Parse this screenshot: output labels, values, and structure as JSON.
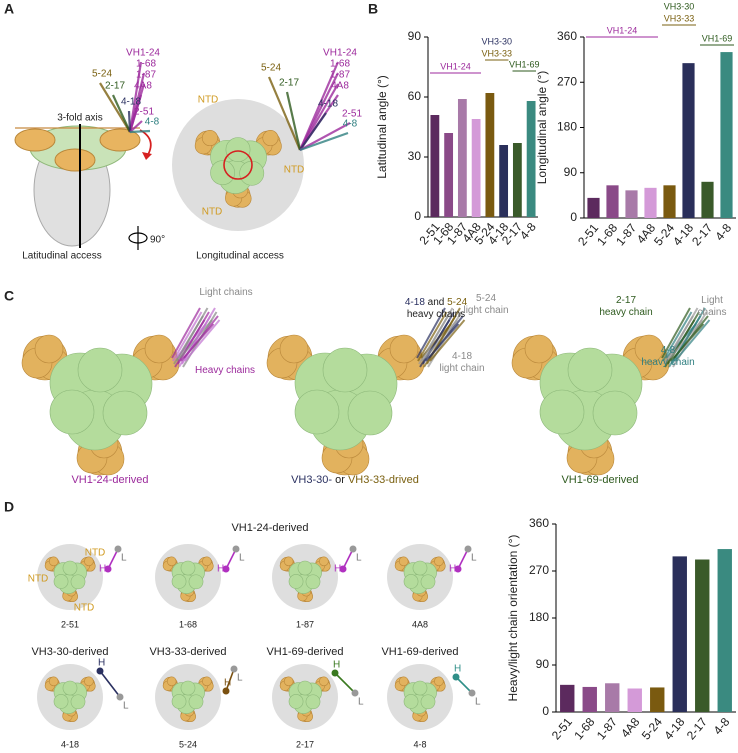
{
  "panel_labels": [
    "A",
    "B",
    "C",
    "D"
  ],
  "panel_a": {
    "axis_label": "3-fold axis",
    "rotation": "90°",
    "captions": [
      "Latitudinal access",
      "Longitudinal access"
    ],
    "ntd": "NTD",
    "antibodies": [
      {
        "label": "VH1-24",
        "color": "#9c2a9c"
      },
      {
        "label": "1-68",
        "color": "#9c2a9c"
      },
      {
        "label": "1-87",
        "color": "#9c2a9c"
      },
      {
        "label": "4A8",
        "color": "#9c2a9c"
      },
      {
        "label": "5-24",
        "color": "#7a6010"
      },
      {
        "label": "2-17",
        "color": "#2e5a1e"
      },
      {
        "label": "4-18",
        "color": "#2a3060"
      },
      {
        "label": "2-51",
        "color": "#9c2a9c"
      },
      {
        "label": "4-8",
        "color": "#2f7f80"
      }
    ]
  },
  "panel_c": {
    "captions": [
      [
        {
          "text": "VH1-24-derived",
          "color": "#9c2a9c"
        }
      ],
      [
        {
          "text": "VH3-30-",
          "color": "#2a3060"
        },
        {
          "text": " or ",
          "color": "#222222"
        },
        {
          "text": "VH3-33-drived",
          "color": "#7a6010"
        }
      ],
      [
        {
          "text": "VH1-69-derived",
          "color": "#2e5a1e"
        }
      ]
    ],
    "notes": [
      [
        [
          {
            "text": "Light chains",
            "color": "#8a8a8a"
          }
        ]
      ],
      [
        [
          {
            "text": "Heavy chains",
            "color": "#9c2a9c"
          }
        ]
      ],
      [
        [
          {
            "text": "4-18",
            "color": "#2a3060"
          },
          {
            "text": " and ",
            "color": "#222222"
          },
          {
            "text": "5-24",
            "color": "#7a6010"
          }
        ],
        [
          {
            "text": "heavy chains",
            "color": "#222222"
          }
        ]
      ],
      [
        [
          {
            "text": "5-24",
            "color": "#8a8a8a"
          }
        ],
        [
          {
            "text": "light chain",
            "color": "#8a8a8a"
          }
        ]
      ],
      [
        [
          {
            "text": "4-18",
            "color": "#8a8a8a"
          }
        ],
        [
          {
            "text": "light chain",
            "color": "#8a8a8a"
          }
        ]
      ],
      [
        [
          {
            "text": "2-17",
            "color": "#2e5a1e"
          }
        ],
        [
          {
            "text": "heavy chain",
            "color": "#2e5a1e"
          }
        ]
      ],
      [
        [
          {
            "text": "Light",
            "color": "#8a8a8a"
          }
        ],
        [
          {
            "text": "chains",
            "color": "#8a8a8a"
          }
        ]
      ],
      [
        [
          {
            "text": "4-8",
            "color": "#2f7f80"
          }
        ],
        [
          {
            "text": "heavy chain",
            "color": "#2f7f80"
          }
        ]
      ]
    ]
  },
  "panel_d": {
    "title": "VH1-24-derived",
    "ntd": "NTD",
    "heavy": "H",
    "light": "L",
    "items": [
      {
        "name": "2-51",
        "color": "#b030c0"
      },
      {
        "name": "1-68",
        "color": "#b030c0"
      },
      {
        "name": "1-87",
        "color": "#b030c0"
      },
      {
        "name": "4A8",
        "color": "#b030c0"
      },
      {
        "group": "VH3-30-derived",
        "name": "4-18",
        "color": "#2a3060"
      },
      {
        "group": "VH3-33-derived",
        "name": "5-24",
        "color": "#7a5010"
      },
      {
        "group": "VH1-69-derived",
        "name": "2-17",
        "color": "#3a7a20"
      },
      {
        "group": "VH1-69-derived",
        "name": "4-8",
        "color": "#2f8f88"
      }
    ]
  },
  "chart_data": [
    {
      "type": "bar",
      "y_label": "Latitudinal angle (°)",
      "categories": [
        "2-51",
        "1-68",
        "1-87",
        "4A8",
        "5-24",
        "4-18",
        "2-17",
        "4-8"
      ],
      "values": [
        51,
        42,
        59,
        49,
        62,
        36,
        37,
        58
      ],
      "colors": [
        "#5c2a5e",
        "#8a4a88",
        "#a87aa8",
        "#d49ad8",
        "#7a5a10",
        "#2a2f5a",
        "#3a5a2a",
        "#3a8a80"
      ],
      "ylim": [
        0,
        90
      ],
      "yticks": [
        0,
        30,
        60,
        90
      ],
      "annotations": [
        "VH1-24",
        "VH3-30",
        "VH3-33",
        "VH1-69"
      ],
      "annotation_colors": [
        "#9c2a9c",
        "#2a3060",
        "#7a6010",
        "#2e5a1e"
      ]
    },
    {
      "type": "bar",
      "y_label": "Longitudinal angle (°)",
      "categories": [
        "2-51",
        "1-68",
        "1-87",
        "4A8",
        "5-24",
        "4-18",
        "2-17",
        "4-8"
      ],
      "values": [
        40,
        65,
        55,
        60,
        65,
        308,
        72,
        330
      ],
      "colors": [
        "#5c2a5e",
        "#8a4a88",
        "#a87aa8",
        "#d49ad8",
        "#7a5a10",
        "#2a2f5a",
        "#3a5a2a",
        "#3a8a80"
      ],
      "ylim": [
        0,
        360
      ],
      "yticks": [
        0,
        90,
        180,
        270,
        360
      ],
      "annotations": [
        "VH1-24",
        "VH3-30",
        "VH3-33",
        "VH1-69"
      ],
      "annotation_colors": [
        "#9c2a9c",
        "#2e5a1e",
        "#7a6010",
        "#2e5a1e"
      ]
    },
    {
      "type": "bar",
      "y_label": "Heavy/light chain orientation (°)",
      "categories": [
        "2-51",
        "1-68",
        "1-87",
        "4A8",
        "5-24",
        "4-18",
        "2-17",
        "4-8"
      ],
      "values": [
        52,
        48,
        55,
        45,
        47,
        298,
        292,
        312
      ],
      "colors": [
        "#5c2a5e",
        "#8a4a88",
        "#a87aa8",
        "#d49ad8",
        "#7a5a10",
        "#2a2f5a",
        "#3a5a2a",
        "#3a8a80"
      ],
      "ylim": [
        0,
        360
      ],
      "yticks": [
        0,
        90,
        180,
        270,
        360
      ]
    }
  ]
}
